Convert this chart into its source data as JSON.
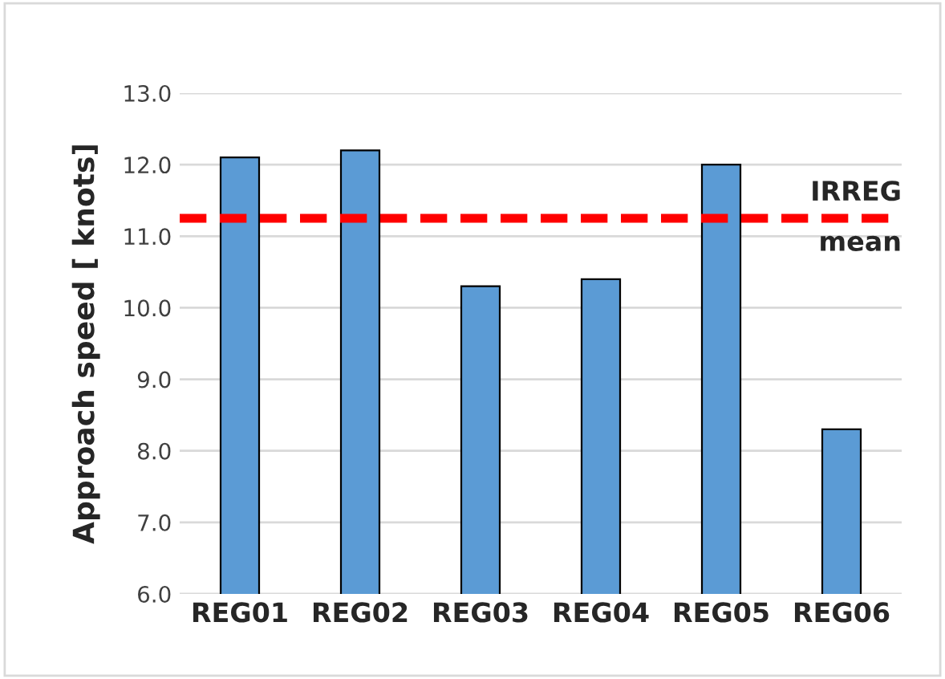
{
  "chart_data": {
    "type": "bar",
    "ylabel": "Approach speed [ knots]",
    "categories": [
      "REG01",
      "REG02",
      "REG03",
      "REG04",
      "REG05",
      "REG06"
    ],
    "values": [
      12.1,
      12.2,
      10.3,
      10.4,
      12.0,
      8.3
    ],
    "color": "#5b9bd5",
    "ylim": [
      6.0,
      13.0
    ],
    "yticks": [
      {
        "value": 6,
        "label": "6.0"
      },
      {
        "value": 7,
        "label": "7.0"
      },
      {
        "value": 8,
        "label": "8.0"
      },
      {
        "value": 9,
        "label": "9.0"
      },
      {
        "value": 10,
        "label": "10.0"
      },
      {
        "value": 11,
        "label": "11.0"
      },
      {
        "value": 12,
        "label": "12.0"
      },
      {
        "value": 13,
        "label": "13.0"
      }
    ],
    "grid": "y",
    "ref_lines": [
      {
        "axis": "y",
        "value": 11.25,
        "label": "IRREG\nmean",
        "color": "#ff0000",
        "line_style": "dashed"
      }
    ]
  }
}
